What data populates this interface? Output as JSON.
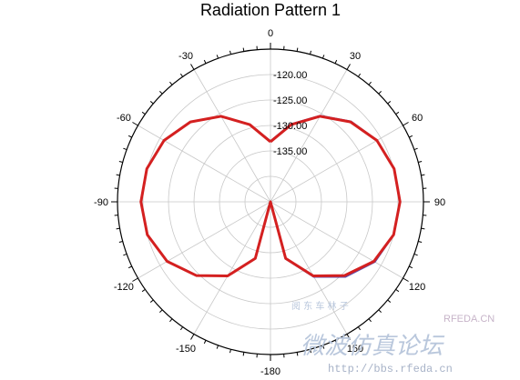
{
  "chart_data": {
    "type": "polar-line",
    "title": "Radiation Pattern 1",
    "angle_ticks": [
      "-180",
      "-150",
      "-120",
      "-90",
      "-60",
      "-30",
      "0",
      "30",
      "60",
      "90",
      "120",
      "150"
    ],
    "angle_tick_values": [
      -180,
      -150,
      -120,
      -90,
      -60,
      -30,
      0,
      30,
      60,
      90,
      120,
      150
    ],
    "radial_ticks": [
      "-120.00",
      "-125.00",
      "-130.00",
      "-135.00"
    ],
    "radial_tick_values": [
      -120,
      -125,
      -130,
      -135
    ],
    "radial_range": [
      -145,
      -115
    ],
    "grid": true,
    "angle_zero": "top",
    "angle_direction": "clockwise",
    "series": [
      {
        "color": "#d42020",
        "theta": [
          0,
          15,
          30,
          45,
          60,
          75,
          90,
          105,
          120,
          135,
          150,
          165,
          180,
          -165,
          -150,
          -135,
          -120,
          -105,
          -90,
          -75,
          -60,
          -45,
          -30,
          -15,
          0
        ],
        "r": [
          -133.2,
          -129.3,
          -125.6,
          -122.8,
          -120.9,
          -119.9,
          -119.6,
          -120.0,
          -121.6,
          -124.5,
          -128.2,
          -133.5,
          -145.0,
          -133.5,
          -128.2,
          -124.5,
          -121.6,
          -120.0,
          -119.6,
          -119.9,
          -120.9,
          -122.8,
          -125.6,
          -129.3,
          -133.2
        ]
      },
      {
        "color": "#5a4fb0",
        "theta": [
          0,
          15,
          30,
          45,
          60,
          75,
          90,
          105,
          120,
          135,
          150,
          165,
          180,
          -165,
          -150,
          -135,
          -120,
          -105,
          -90,
          -75,
          -60,
          -45,
          -30,
          -15,
          0
        ],
        "r": [
          -133.1,
          -129.2,
          -125.5,
          -122.7,
          -120.9,
          -119.9,
          -119.6,
          -120.0,
          -121.4,
          -124.2,
          -128.0,
          -133.4,
          -145.0,
          -133.5,
          -128.2,
          -124.5,
          -121.6,
          -120.0,
          -119.6,
          -119.9,
          -120.9,
          -122.8,
          -125.6,
          -129.3,
          -133.1
        ]
      }
    ]
  },
  "watermark": {
    "site_code": "RFEDA.CN",
    "chinese_text": "微波仿真论坛",
    "small_chinese": "阅 东 车 林 子",
    "url": "http://bbs.rfeda.cn"
  }
}
